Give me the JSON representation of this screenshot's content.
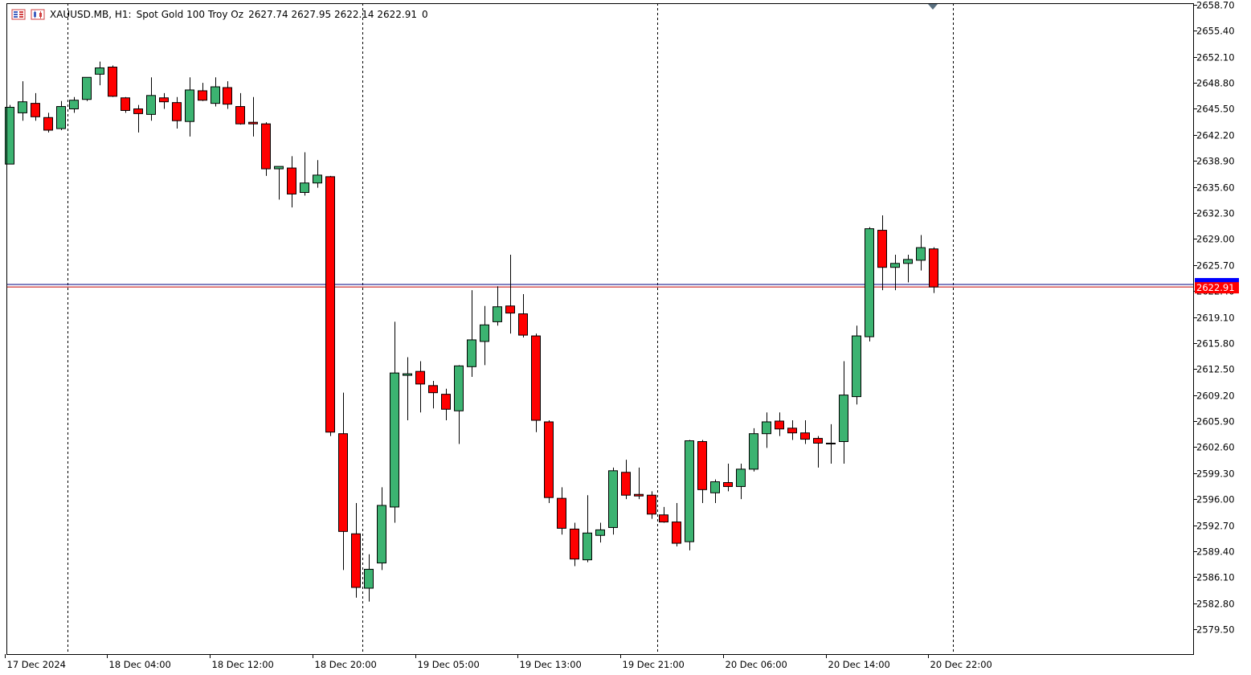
{
  "header": {
    "symbol": "XAUUSD.MB, H1:",
    "description": "Spot Gold 100 Troy Oz",
    "ohlc": "2627.74 2627.95 2622.14 2622.91",
    "extra": "0"
  },
  "colors": {
    "up": "#3cb371",
    "down": "#ff0000",
    "background": "#ffffff",
    "grid": "#000000",
    "bid_line": "#c00000",
    "ask_line": "#000080",
    "bid_label_bg": "#ff0000",
    "ask_label_bg": "#0000ff"
  },
  "price_labels": {
    "bid": "2622.91",
    "ask": "2623.23"
  },
  "chart_data": {
    "type": "candlestick",
    "symbol": "XAUUSD.MB",
    "timeframe": "H1",
    "ylim": [
      2577.9,
      2658.7
    ],
    "y_ticks": [
      "2658.70",
      "2655.40",
      "2652.10",
      "2648.80",
      "2645.50",
      "2642.20",
      "2638.90",
      "2635.60",
      "2632.30",
      "2629.00",
      "2625.70",
      "2622.40",
      "2619.10",
      "2615.80",
      "2612.50",
      "2609.20",
      "2605.90",
      "2602.60",
      "2599.30",
      "2596.00",
      "2592.70",
      "2589.40",
      "2586.10",
      "2582.80",
      "2579.50"
    ],
    "x_ticks": [
      {
        "label": "17 Dec 2024",
        "index": -0.4
      },
      {
        "label": "18 Dec 04:00",
        "index": 7.6
      },
      {
        "label": "18 Dec 12:00",
        "index": 15.6
      },
      {
        "label": "18 Dec 20:00",
        "index": 23.6
      },
      {
        "label": "19 Dec 05:00",
        "index": 31.6
      },
      {
        "label": "19 Dec 13:00",
        "index": 39.6
      },
      {
        "label": "19 Dec 21:00",
        "index": 47.6
      },
      {
        "label": "20 Dec 06:00",
        "index": 55.6
      },
      {
        "label": "20 Dec 14:00",
        "index": 63.6
      },
      {
        "label": "20 Dec 22:00",
        "index": 71.6
      }
    ],
    "separators": [
      4.5,
      27.5,
      50.5,
      73.5
    ],
    "bid": 2622.91,
    "ask": 2623.23,
    "candles": [
      {
        "o": 2638.5,
        "h": 2646.0,
        "l": 2638.5,
        "c": 2645.7
      },
      {
        "o": 2645.0,
        "h": 2649.0,
        "l": 2644.0,
        "c": 2646.4
      },
      {
        "o": 2646.2,
        "h": 2647.5,
        "l": 2644.0,
        "c": 2644.5
      },
      {
        "o": 2644.4,
        "h": 2645.0,
        "l": 2642.5,
        "c": 2642.8
      },
      {
        "o": 2643.0,
        "h": 2646.5,
        "l": 2642.8,
        "c": 2645.8
      },
      {
        "o": 2645.5,
        "h": 2647.0,
        "l": 2645.0,
        "c": 2646.6
      },
      {
        "o": 2646.7,
        "h": 2649.5,
        "l": 2646.5,
        "c": 2649.5
      },
      {
        "o": 2649.9,
        "h": 2651.5,
        "l": 2648.5,
        "c": 2650.7
      },
      {
        "o": 2650.8,
        "h": 2651.0,
        "l": 2647.0,
        "c": 2647.1
      },
      {
        "o": 2646.9,
        "h": 2647.0,
        "l": 2645.0,
        "c": 2645.3
      },
      {
        "o": 2645.5,
        "h": 2646.0,
        "l": 2642.5,
        "c": 2644.9
      },
      {
        "o": 2644.8,
        "h": 2649.5,
        "l": 2644.0,
        "c": 2647.2
      },
      {
        "o": 2646.9,
        "h": 2647.5,
        "l": 2645.5,
        "c": 2646.4
      },
      {
        "o": 2646.3,
        "h": 2647.0,
        "l": 2643.0,
        "c": 2644.0
      },
      {
        "o": 2643.9,
        "h": 2649.5,
        "l": 2642.0,
        "c": 2647.9
      },
      {
        "o": 2647.8,
        "h": 2648.8,
        "l": 2646.5,
        "c": 2646.6
      },
      {
        "o": 2646.2,
        "h": 2649.5,
        "l": 2645.8,
        "c": 2648.3
      },
      {
        "o": 2648.2,
        "h": 2649.0,
        "l": 2645.5,
        "c": 2646.1
      },
      {
        "o": 2645.8,
        "h": 2647.5,
        "l": 2643.5,
        "c": 2643.6
      },
      {
        "o": 2643.8,
        "h": 2647.0,
        "l": 2642.0,
        "c": 2643.6
      },
      {
        "o": 2643.6,
        "h": 2643.8,
        "l": 2637.0,
        "c": 2637.9
      },
      {
        "o": 2637.9,
        "h": 2638.0,
        "l": 2634.0,
        "c": 2638.2
      },
      {
        "o": 2638.0,
        "h": 2639.5,
        "l": 2633.0,
        "c": 2634.7
      },
      {
        "o": 2634.9,
        "h": 2640.0,
        "l": 2634.5,
        "c": 2636.1
      },
      {
        "o": 2636.1,
        "h": 2639.0,
        "l": 2635.5,
        "c": 2637.1
      },
      {
        "o": 2636.9,
        "h": 2637.0,
        "l": 2604.0,
        "c": 2604.5
      },
      {
        "o": 2604.3,
        "h": 2609.5,
        "l": 2587.0,
        "c": 2591.9
      },
      {
        "o": 2591.6,
        "h": 2595.5,
        "l": 2583.5,
        "c": 2584.8
      },
      {
        "o": 2584.7,
        "h": 2589.0,
        "l": 2583.0,
        "c": 2587.1
      },
      {
        "o": 2587.9,
        "h": 2597.5,
        "l": 2587.0,
        "c": 2595.2
      },
      {
        "o": 2595.0,
        "h": 2618.5,
        "l": 2593.0,
        "c": 2612.0
      },
      {
        "o": 2611.7,
        "h": 2614.0,
        "l": 2606.0,
        "c": 2611.9
      },
      {
        "o": 2612.2,
        "h": 2613.5,
        "l": 2607.0,
        "c": 2610.6
      },
      {
        "o": 2610.4,
        "h": 2611.0,
        "l": 2607.5,
        "c": 2609.5
      },
      {
        "o": 2609.3,
        "h": 2610.0,
        "l": 2606.0,
        "c": 2607.4
      },
      {
        "o": 2607.2,
        "h": 2613.0,
        "l": 2603.0,
        "c": 2612.9
      },
      {
        "o": 2612.8,
        "h": 2622.5,
        "l": 2611.5,
        "c": 2616.2
      },
      {
        "o": 2616.0,
        "h": 2620.5,
        "l": 2613.0,
        "c": 2618.1
      },
      {
        "o": 2618.5,
        "h": 2623.0,
        "l": 2618.0,
        "c": 2620.4
      },
      {
        "o": 2620.5,
        "h": 2627.0,
        "l": 2617.0,
        "c": 2619.6
      },
      {
        "o": 2619.5,
        "h": 2622.0,
        "l": 2616.5,
        "c": 2616.8
      },
      {
        "o": 2616.7,
        "h": 2617.0,
        "l": 2604.5,
        "c": 2606.0
      },
      {
        "o": 2605.8,
        "h": 2606.0,
        "l": 2595.5,
        "c": 2596.2
      },
      {
        "o": 2596.1,
        "h": 2597.5,
        "l": 2591.5,
        "c": 2592.3
      },
      {
        "o": 2592.2,
        "h": 2593.0,
        "l": 2587.5,
        "c": 2588.4
      },
      {
        "o": 2588.3,
        "h": 2596.5,
        "l": 2588.0,
        "c": 2591.7
      },
      {
        "o": 2591.4,
        "h": 2593.0,
        "l": 2590.5,
        "c": 2592.1
      },
      {
        "o": 2592.4,
        "h": 2600.0,
        "l": 2591.5,
        "c": 2599.6
      },
      {
        "o": 2599.4,
        "h": 2601.0,
        "l": 2596.0,
        "c": 2596.5
      },
      {
        "o": 2596.6,
        "h": 2600.0,
        "l": 2596.0,
        "c": 2596.4
      },
      {
        "o": 2596.5,
        "h": 2597.0,
        "l": 2593.5,
        "c": 2594.1
      },
      {
        "o": 2594.0,
        "h": 2595.0,
        "l": 2593.0,
        "c": 2593.1
      },
      {
        "o": 2593.1,
        "h": 2595.5,
        "l": 2590.0,
        "c": 2590.4
      },
      {
        "o": 2590.6,
        "h": 2603.5,
        "l": 2589.5,
        "c": 2603.4
      },
      {
        "o": 2603.3,
        "h": 2603.5,
        "l": 2595.5,
        "c": 2597.2
      },
      {
        "o": 2596.8,
        "h": 2598.5,
        "l": 2595.5,
        "c": 2598.2
      },
      {
        "o": 2598.1,
        "h": 2600.5,
        "l": 2597.0,
        "c": 2597.6
      },
      {
        "o": 2597.6,
        "h": 2600.5,
        "l": 2596.0,
        "c": 2599.8
      },
      {
        "o": 2599.8,
        "h": 2605.0,
        "l": 2599.5,
        "c": 2604.3
      },
      {
        "o": 2604.3,
        "h": 2607.0,
        "l": 2602.5,
        "c": 2605.8
      },
      {
        "o": 2605.9,
        "h": 2607.0,
        "l": 2604.0,
        "c": 2604.9
      },
      {
        "o": 2605.0,
        "h": 2606.0,
        "l": 2603.5,
        "c": 2604.4
      },
      {
        "o": 2604.4,
        "h": 2606.0,
        "l": 2603.0,
        "c": 2603.6
      },
      {
        "o": 2603.7,
        "h": 2604.0,
        "l": 2600.0,
        "c": 2603.1
      },
      {
        "o": 2603.1,
        "h": 2605.5,
        "l": 2600.5,
        "c": 2603.1
      },
      {
        "o": 2603.3,
        "h": 2613.5,
        "l": 2600.5,
        "c": 2609.2
      },
      {
        "o": 2609.0,
        "h": 2618.0,
        "l": 2608.0,
        "c": 2616.7
      },
      {
        "o": 2616.6,
        "h": 2630.5,
        "l": 2616.0,
        "c": 2630.3
      },
      {
        "o": 2630.1,
        "h": 2632.0,
        "l": 2622.5,
        "c": 2625.4
      },
      {
        "o": 2625.4,
        "h": 2627.0,
        "l": 2622.5,
        "c": 2625.9
      },
      {
        "o": 2625.9,
        "h": 2627.0,
        "l": 2623.5,
        "c": 2626.4
      },
      {
        "o": 2626.3,
        "h": 2629.5,
        "l": 2625.0,
        "c": 2627.9
      },
      {
        "o": 2627.74,
        "h": 2627.95,
        "l": 2622.14,
        "c": 2622.91
      }
    ]
  }
}
